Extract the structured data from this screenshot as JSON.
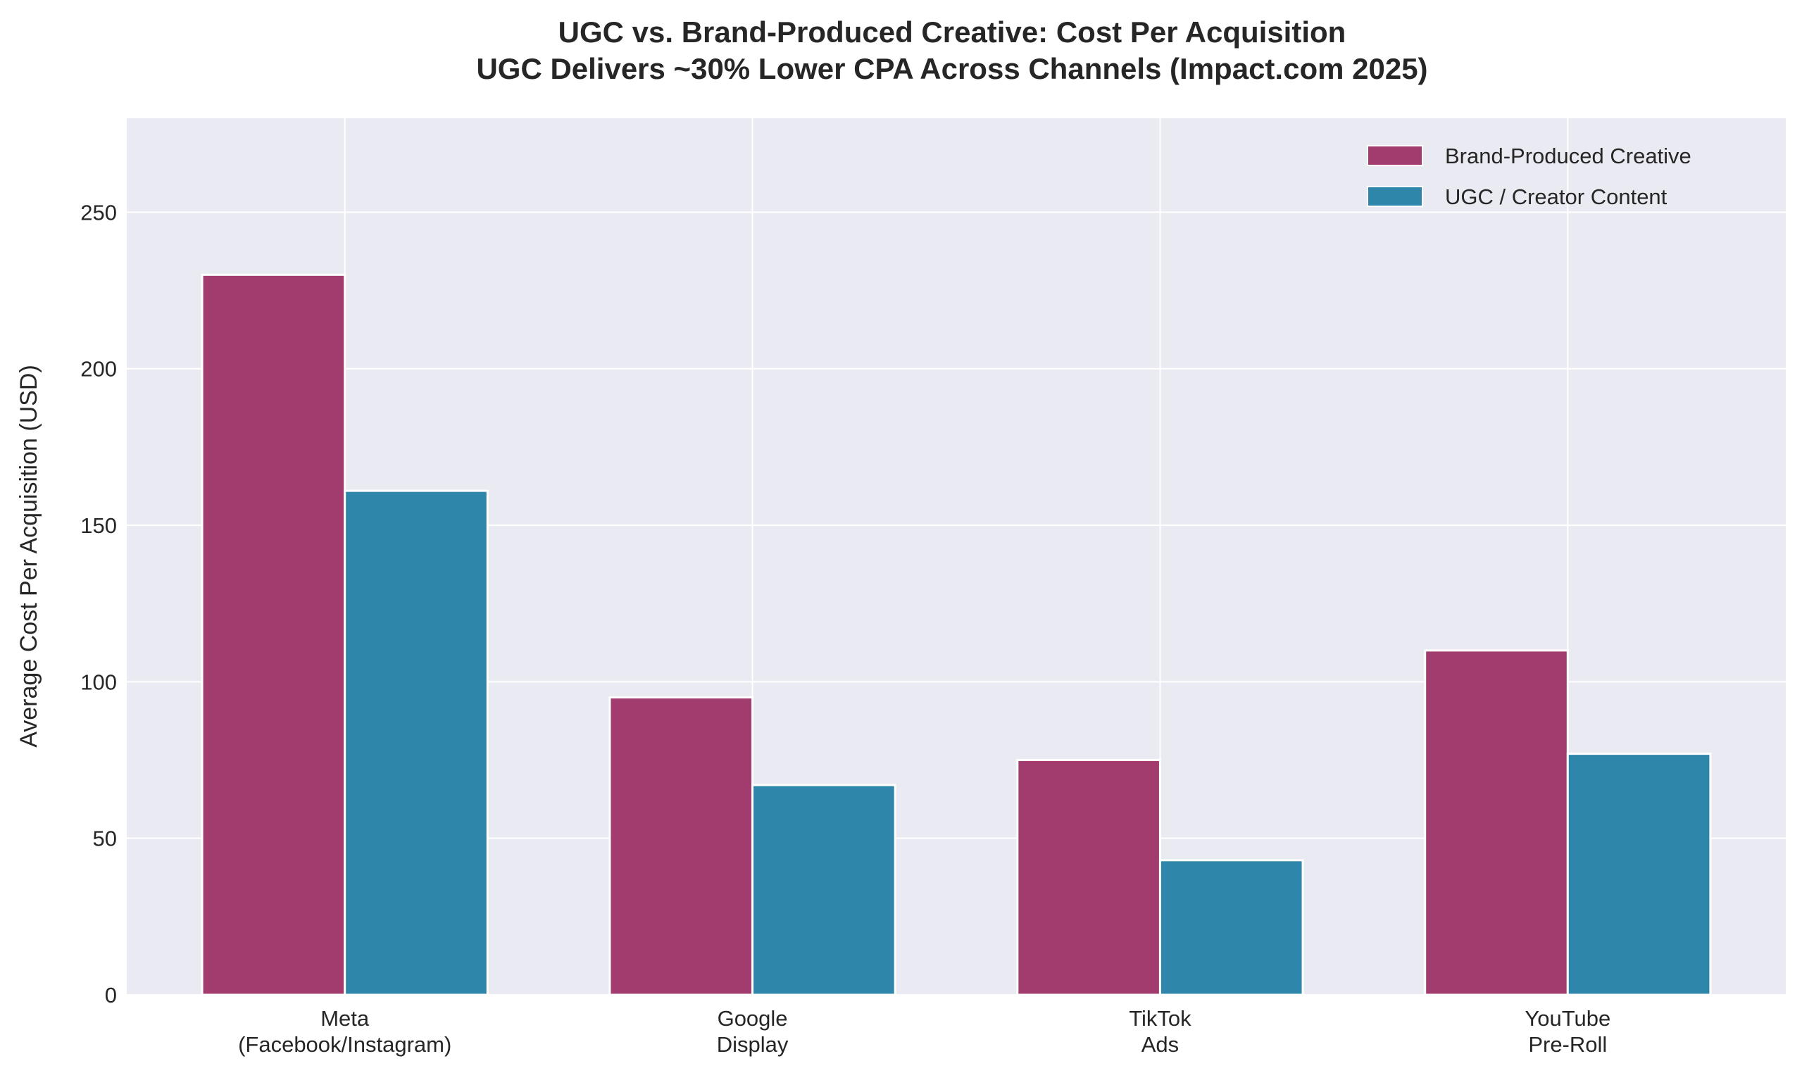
{
  "chart_data": {
    "type": "bar",
    "title": "UGC vs. Brand-Produced Creative: Cost Per Acquisition",
    "subtitle": "UGC Delivers ~30% Lower CPA Across Channels (Impact.com 2025)",
    "xlabel": "",
    "ylabel": "Average Cost Per Acquisition (USD)",
    "categories": [
      [
        "Meta",
        "(Facebook/Instagram)"
      ],
      [
        "Google",
        "Display"
      ],
      [
        "TikTok",
        "Ads"
      ],
      [
        "YouTube",
        "Pre-Roll"
      ]
    ],
    "series": [
      {
        "name": "Brand-Produced Creative",
        "color": "#A23B6E",
        "values": [
          230,
          95,
          75,
          110
        ],
        "labels": [
          "$230",
          "$95",
          "$75",
          "$110"
        ]
      },
      {
        "name": "UGC / Creator Content",
        "color": "#2E86AB",
        "values": [
          161,
          67,
          43,
          77
        ],
        "labels": [
          "$161",
          "$67",
          "$43",
          "$77"
        ]
      }
    ],
    "ylim": [
      0,
      280
    ],
    "yticks": [
      0,
      50,
      100,
      150,
      200,
      250
    ],
    "grid": true,
    "legend": "top-right",
    "background": "#EAEAF2"
  }
}
